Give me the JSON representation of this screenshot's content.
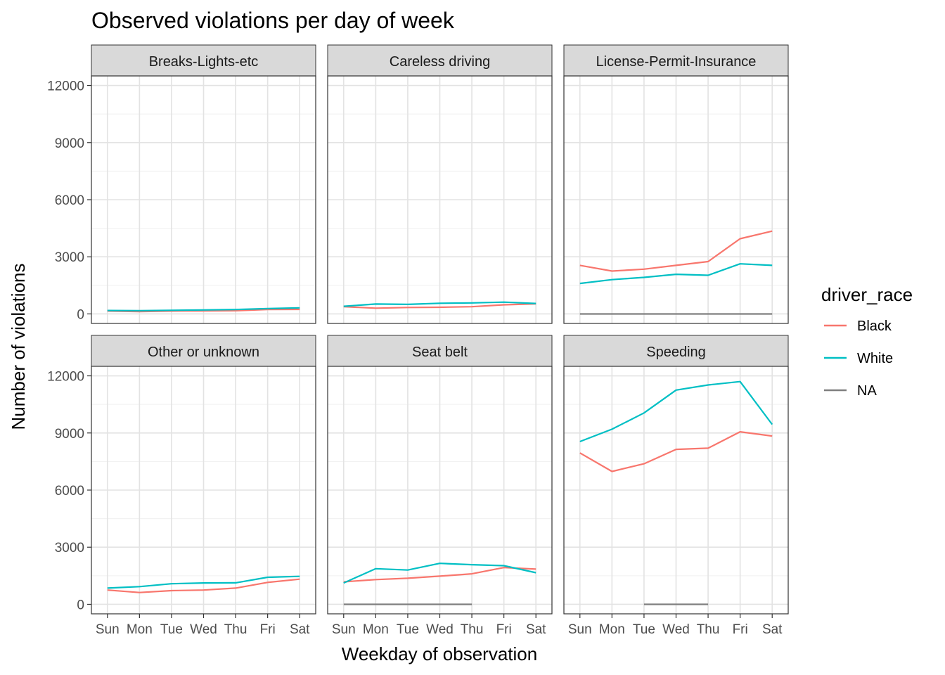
{
  "chart_data": {
    "type": "line",
    "title": "Observed violations per day of week",
    "xlabel": "Weekday of observation",
    "ylabel": "Number of violations",
    "categories": [
      "Sun",
      "Mon",
      "Tue",
      "Wed",
      "Thu",
      "Fri",
      "Sat"
    ],
    "ylim": [
      -500,
      12500
    ],
    "yticks": [
      0,
      3000,
      6000,
      9000,
      12000
    ],
    "ytick_labels": [
      "0",
      "3000",
      "6000",
      "9000",
      "12000"
    ],
    "grid": true,
    "legend": {
      "title": "driver_race",
      "position": "right",
      "entries": [
        {
          "name": "Black",
          "color": "#F8766D"
        },
        {
          "name": "White",
          "color": "#00BFC4"
        },
        {
          "name": "NA",
          "color": "#7F7F7F"
        }
      ]
    },
    "facets": [
      {
        "title": "Breaks-Lights-etc",
        "series": [
          {
            "name": "Black",
            "values": [
              150,
              120,
              150,
              160,
              170,
              230,
              240
            ]
          },
          {
            "name": "White",
            "values": [
              180,
              170,
              190,
              210,
              230,
              280,
              320
            ]
          }
        ]
      },
      {
        "title": "Careless driving",
        "series": [
          {
            "name": "Black",
            "values": [
              380,
              300,
              340,
              350,
              380,
              480,
              530
            ]
          },
          {
            "name": "White",
            "values": [
              400,
              520,
              500,
              560,
              580,
              620,
              550
            ]
          }
        ]
      },
      {
        "title": "License-Permit-Insurance",
        "series": [
          {
            "name": "Black",
            "values": [
              2550,
              2250,
              2350,
              2550,
              2750,
              3950,
              4350
            ]
          },
          {
            "name": "White",
            "values": [
              1600,
              1800,
              1920,
              2080,
              2030,
              2630,
              2550
            ]
          },
          {
            "name": "NA",
            "values": [
              0,
              0,
              0,
              0,
              0,
              0,
              0
            ]
          }
        ]
      },
      {
        "title": "Other or unknown",
        "series": [
          {
            "name": "Black",
            "values": [
              750,
              620,
              720,
              750,
              850,
              1150,
              1320
            ]
          },
          {
            "name": "White",
            "values": [
              850,
              930,
              1080,
              1120,
              1130,
              1420,
              1470
            ]
          }
        ]
      },
      {
        "title": "Seat belt",
        "series": [
          {
            "name": "Black",
            "values": [
              1180,
              1300,
              1370,
              1480,
              1600,
              1930,
              1850
            ]
          },
          {
            "name": "White",
            "values": [
              1120,
              1870,
              1800,
              2150,
              2080,
              2030,
              1660
            ]
          },
          {
            "name": "NA",
            "values": [
              0,
              0,
              0,
              0,
              0,
              null,
              null
            ]
          }
        ]
      },
      {
        "title": "Speeding",
        "series": [
          {
            "name": "Black",
            "values": [
              7950,
              6980,
              7380,
              8140,
              8200,
              9060,
              8840
            ]
          },
          {
            "name": "White",
            "values": [
              8550,
              9200,
              10050,
              11250,
              11520,
              11700,
              9450
            ]
          },
          {
            "name": "NA",
            "values": [
              null,
              null,
              0,
              0,
              0,
              null,
              null
            ]
          }
        ]
      }
    ]
  }
}
